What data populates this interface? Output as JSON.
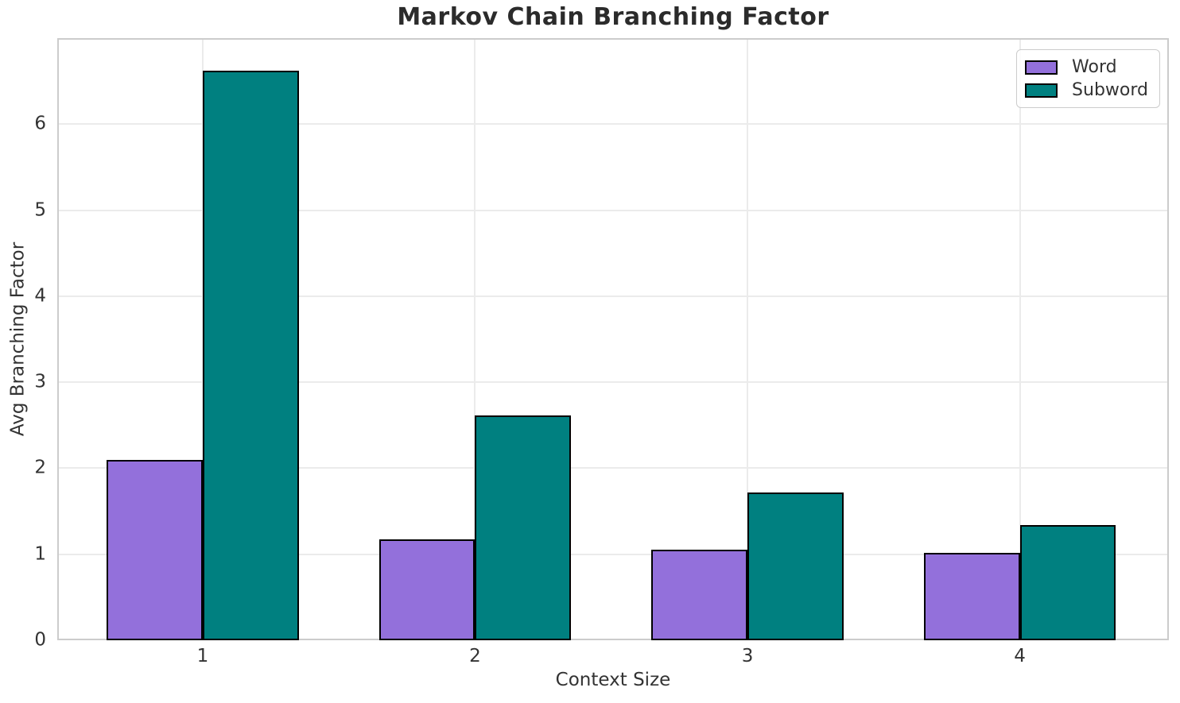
{
  "chart_data": {
    "type": "bar",
    "title": "Markov Chain Branching Factor",
    "xlabel": "Context Size",
    "ylabel": "Avg Branching Factor",
    "categories": [
      "1",
      "2",
      "3",
      "4"
    ],
    "series": [
      {
        "name": "Word",
        "color": "#9370DB",
        "values": [
          2.1,
          1.17,
          1.05,
          1.02
        ]
      },
      {
        "name": "Subword",
        "color": "#008080",
        "values": [
          6.62,
          2.61,
          1.72,
          1.34
        ]
      }
    ],
    "ylim": [
      0,
      7
    ],
    "yticks": [
      0,
      1,
      2,
      3,
      4,
      5,
      6
    ],
    "xlim": [
      0.466,
      4.547
    ],
    "bar_width": 0.352,
    "bar_edge_color": "#000000",
    "grid": true,
    "legend": {
      "position": "upper right",
      "labels": [
        "Word",
        "Subword"
      ]
    }
  }
}
